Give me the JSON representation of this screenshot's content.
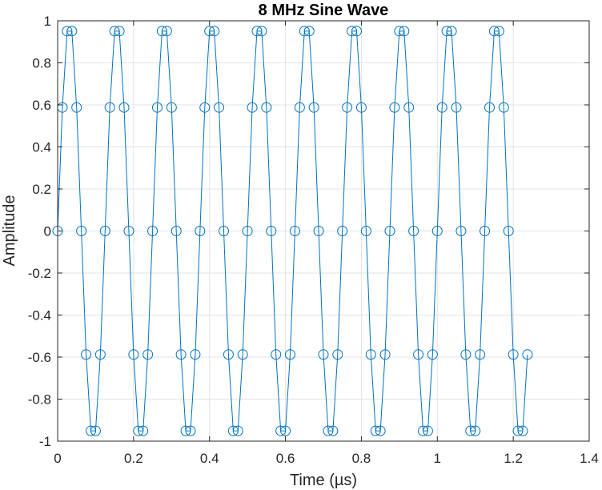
{
  "chart_data": {
    "type": "line",
    "title": "8 MHz Sine Wave",
    "xlabel": "Time (µs)",
    "ylabel": "Amplitude",
    "xlim": [
      0,
      1.4
    ],
    "ylim": [
      -1,
      1
    ],
    "xticks": [
      0,
      0.2,
      0.4,
      0.6,
      0.8,
      1,
      1.2,
      1.4
    ],
    "xtick_labels": [
      "0",
      "0.2",
      "0.4",
      "0.6",
      "0.8",
      "1",
      "1.2",
      "1.4"
    ],
    "yticks": [
      1,
      0.8,
      0.6,
      0.4,
      0.2,
      0,
      -0.2,
      -0.4,
      -0.6,
      -0.8,
      -1
    ],
    "ytick_labels": [
      "1",
      "0.8",
      "0.6",
      "0.4",
      "0.2",
      "0",
      "-0.2",
      "-0.4",
      "-0.6",
      "-0.8",
      "-1"
    ],
    "grid": true,
    "marker": "circle",
    "series": [
      {
        "frequency_mhz": 8,
        "sample_interval_us": 0.0125,
        "x": [
          0,
          0.0125,
          0.025,
          0.0375,
          0.05,
          0.0625,
          0.075,
          0.0875,
          0.1,
          0.1125,
          0.125,
          0.1375,
          0.15,
          0.1625,
          0.175,
          0.1875,
          0.2,
          0.2125,
          0.225,
          0.2375,
          0.25,
          0.2625,
          0.275,
          0.2875,
          0.3,
          0.3125,
          0.325,
          0.3375,
          0.35,
          0.3625,
          0.375,
          0.3875,
          0.4,
          0.4125,
          0.425,
          0.4375,
          0.45,
          0.4625,
          0.475,
          0.4875,
          0.5,
          0.5125,
          0.525,
          0.5375,
          0.55,
          0.5625,
          0.575,
          0.5875,
          0.6,
          0.6125,
          0.625,
          0.6375,
          0.65,
          0.6625,
          0.675,
          0.6875,
          0.7,
          0.7125,
          0.725,
          0.7375,
          0.75,
          0.7625,
          0.775,
          0.7875,
          0.8,
          0.8125,
          0.825,
          0.8375,
          0.85,
          0.8625,
          0.875,
          0.8875,
          0.9,
          0.9125,
          0.925,
          0.9375,
          0.95,
          0.9625,
          0.975,
          0.9875,
          1,
          1.0125,
          1.025,
          1.0375,
          1.05,
          1.0625,
          1.075,
          1.0875,
          1.1,
          1.1125,
          1.125,
          1.1375,
          1.15,
          1.1625,
          1.175,
          1.1875,
          1.2,
          1.2125,
          1.225,
          1.2375
        ],
        "y": [
          0,
          0.5878,
          0.9511,
          0.9511,
          0.5878,
          0,
          -0.5878,
          -0.9511,
          -0.9511,
          -0.5878,
          0,
          0.5878,
          0.9511,
          0.9511,
          0.5878,
          0,
          -0.5878,
          -0.9511,
          -0.9511,
          -0.5878,
          0,
          0.5878,
          0.9511,
          0.9511,
          0.5878,
          0,
          -0.5878,
          -0.9511,
          -0.9511,
          -0.5878,
          0,
          0.5878,
          0.9511,
          0.9511,
          0.5878,
          0,
          -0.5878,
          -0.9511,
          -0.9511,
          -0.5878,
          0,
          0.5878,
          0.9511,
          0.9511,
          0.5878,
          0,
          -0.5878,
          -0.9511,
          -0.9511,
          -0.5878,
          0,
          0.5878,
          0.9511,
          0.9511,
          0.5878,
          0,
          -0.5878,
          -0.9511,
          -0.9511,
          -0.5878,
          0,
          0.5878,
          0.9511,
          0.9511,
          0.5878,
          0,
          -0.5878,
          -0.9511,
          -0.9511,
          -0.5878,
          0,
          0.5878,
          0.9511,
          0.9511,
          0.5878,
          0,
          -0.5878,
          -0.9511,
          -0.9511,
          -0.5878,
          0,
          0.5878,
          0.9511,
          0.9511,
          0.5878,
          0,
          -0.5878,
          -0.9511,
          -0.9511,
          -0.5878,
          0,
          0.5878,
          0.9511,
          0.9511,
          0.5878,
          0,
          -0.5878,
          -0.9511,
          -0.9511,
          -0.5878
        ]
      }
    ]
  },
  "colors": {
    "series_line": "#0072BD",
    "grid": "#e3e3e3",
    "axis": "#262626",
    "background": "#ffffff"
  }
}
